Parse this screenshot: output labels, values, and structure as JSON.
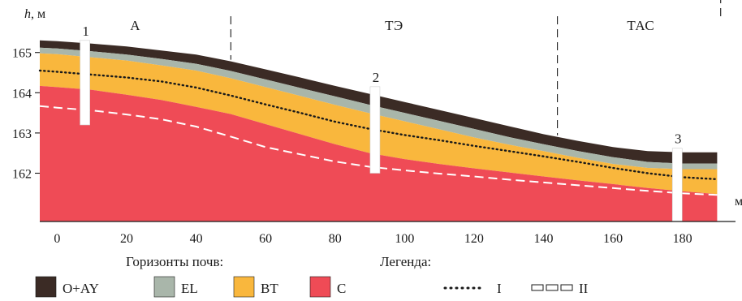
{
  "chart_data": {
    "type": "area",
    "xlabel": "м",
    "ylabel_var": "h",
    "ylabel_unit": ", м",
    "xlim": [
      -5,
      192
    ],
    "ylim": [
      160.8,
      165.7
    ],
    "x_ticks": [
      0,
      20,
      40,
      60,
      80,
      100,
      120,
      140,
      160,
      180
    ],
    "y_ticks": [
      162,
      163,
      164,
      165
    ],
    "zones": [
      {
        "label": "А",
        "x_from": -5,
        "x_to": 50
      },
      {
        "label": "ТЭ",
        "x_from": 50,
        "x_to": 144
      },
      {
        "label": "ТАС",
        "x_from": 144,
        "x_to": 192
      }
    ],
    "zone_boundaries": [
      50,
      144,
      191
    ],
    "soil_horizons": [
      {
        "name": "O+AY",
        "color": "#3b2b25"
      },
      {
        "name": "EL",
        "color": "#a9b6aa"
      },
      {
        "name": "BT",
        "color": "#f9b73d"
      },
      {
        "name": "C",
        "color": "#ef4b56"
      }
    ],
    "x": [
      -5,
      0,
      10,
      20,
      30,
      40,
      50,
      60,
      70,
      80,
      90,
      100,
      110,
      120,
      130,
      140,
      150,
      160,
      170,
      180,
      190
    ],
    "surface": [
      165.3,
      165.28,
      165.22,
      165.15,
      165.05,
      164.95,
      164.78,
      164.58,
      164.38,
      164.17,
      163.97,
      163.77,
      163.57,
      163.37,
      163.17,
      162.97,
      162.8,
      162.65,
      162.55,
      162.52,
      162.52
    ],
    "el_top": [
      165.12,
      165.1,
      165.03,
      164.95,
      164.84,
      164.72,
      164.54,
      164.33,
      164.12,
      163.91,
      163.7,
      163.5,
      163.3,
      163.1,
      162.9,
      162.72,
      162.55,
      162.4,
      162.28,
      162.24,
      162.24
    ],
    "bt_top": [
      164.98,
      164.96,
      164.88,
      164.8,
      164.68,
      164.55,
      164.36,
      164.14,
      163.92,
      163.7,
      163.49,
      163.29,
      163.09,
      162.89,
      162.71,
      162.55,
      162.38,
      162.23,
      162.13,
      162.1,
      162.1
    ],
    "c_top": [
      164.17,
      164.14,
      164.07,
      163.95,
      163.82,
      163.65,
      163.47,
      163.22,
      162.97,
      162.72,
      162.5,
      162.35,
      162.23,
      162.12,
      162.02,
      161.92,
      161.82,
      161.73,
      161.63,
      161.55,
      161.48
    ],
    "line_I": [
      164.55,
      164.52,
      164.45,
      164.38,
      164.28,
      164.13,
      163.93,
      163.71,
      163.5,
      163.28,
      163.1,
      162.95,
      162.82,
      162.68,
      162.55,
      162.42,
      162.28,
      162.13,
      162.0,
      161.9,
      161.85
    ],
    "line_II": [
      163.67,
      163.63,
      163.56,
      163.46,
      163.34,
      163.16,
      162.91,
      162.65,
      162.47,
      162.29,
      162.16,
      162.07,
      161.99,
      161.92,
      161.84,
      161.77,
      161.7,
      161.63,
      161.56,
      161.5,
      161.46
    ],
    "wells": [
      {
        "label": "1",
        "x": 8,
        "top": 165.3,
        "bottom": 163.2
      },
      {
        "label": "2",
        "x": 91.5,
        "top": 164.15,
        "bottom": 162.0
      },
      {
        "label": "3",
        "x": 178.5,
        "top": 162.62,
        "bottom": 160.8
      }
    ],
    "legend": {
      "horizons_title": "Горизонты почв:",
      "lines_title": "Легенда:",
      "lines": [
        {
          "label": "I",
          "style": "dotted"
        },
        {
          "label": "II",
          "style": "dashed"
        }
      ]
    }
  }
}
